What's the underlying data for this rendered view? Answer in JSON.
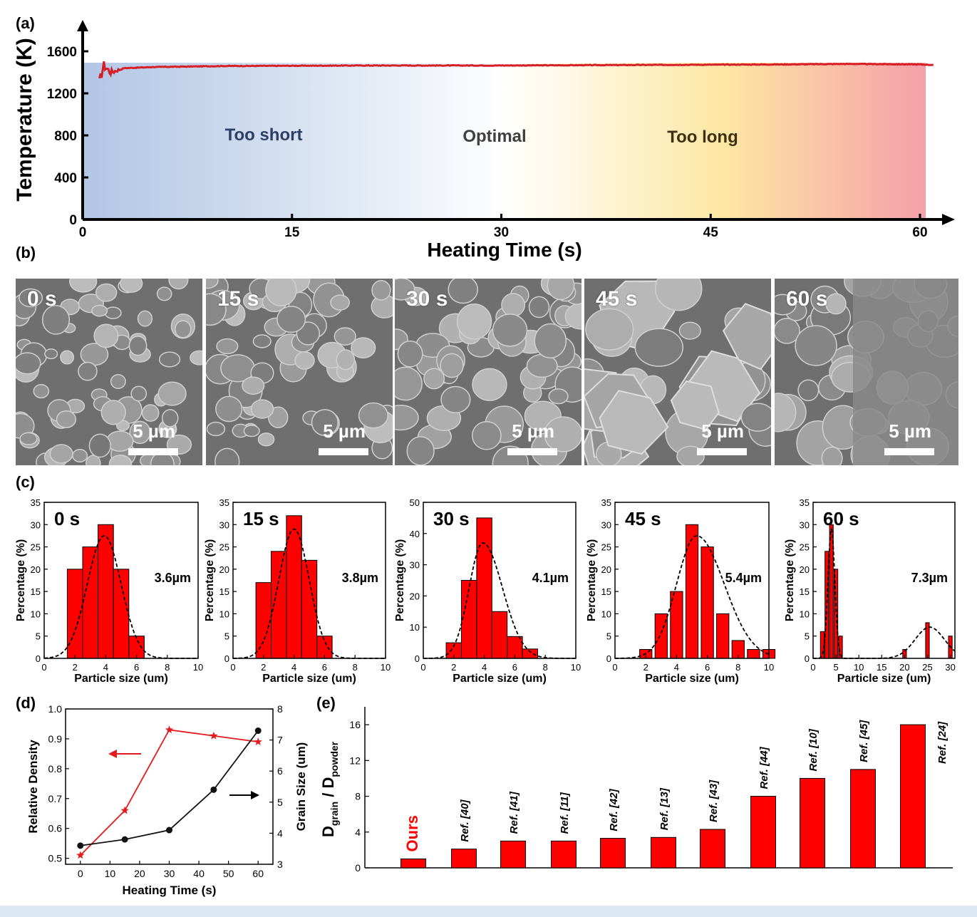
{
  "panels": {
    "a": {
      "tag": "(a)",
      "ylabel": "Temperature (K)",
      "xlabel": "Heating Time (s)",
      "yticks": [
        "0",
        "400",
        "800",
        "1200",
        "1600"
      ],
      "xticks": [
        "0",
        "15",
        "30",
        "45",
        "60"
      ],
      "zones": [
        "Too short",
        "Optimal",
        "Too long"
      ]
    },
    "b": {
      "tag": "(b)",
      "images": [
        {
          "time": "0 s",
          "scale": "5 µm"
        },
        {
          "time": "15 s",
          "scale": "5 µm"
        },
        {
          "time": "30 s",
          "scale": "5 µm"
        },
        {
          "time": "45 s",
          "scale": "5 µm"
        },
        {
          "time": "60 s",
          "scale": "5 µm"
        }
      ]
    },
    "c": {
      "tag": "(c)"
    },
    "d": {
      "tag": "(d)"
    },
    "e": {
      "tag": "(e)"
    }
  },
  "colors": {
    "red": "#e41a1c",
    "bar_red": "#ff0000",
    "trace": "#d61f26",
    "black": "#111111",
    "ours_text": "#ff0000"
  },
  "chart_data": [
    {
      "id": "a",
      "type": "line",
      "x_ticks": [
        0,
        15,
        30,
        45,
        60
      ],
      "y_ticks": [
        0,
        400,
        800,
        1200,
        1600
      ],
      "xlim": [
        0,
        60
      ],
      "ylim": [
        0,
        1600
      ],
      "series": [
        {
          "x": [
            1.2,
            1.5,
            2,
            3,
            5,
            10,
            20,
            30,
            40,
            50,
            55,
            60,
            61
          ],
          "y": [
            1300,
            1470,
            1400,
            1440,
            1450,
            1460,
            1465,
            1465,
            1470,
            1475,
            1480,
            1475,
            1470
          ]
        }
      ],
      "annotations": [
        "Too short",
        "Optimal",
        "Too long"
      ],
      "background_gradient": [
        "#a8bfe0",
        "#ffffff",
        "#fde7a0",
        "#f7a0a8"
      ]
    },
    {
      "id": "c0",
      "type": "bar",
      "label": "0 s",
      "annotation": "3.6µm",
      "xlabel": "Particle size (um)",
      "ylabel": "Percentage (%)",
      "xlim": [
        0,
        10
      ],
      "ylim": [
        0,
        35
      ],
      "x_ticks": [
        0,
        2,
        4,
        6,
        8,
        10
      ],
      "y_ticks": [
        0,
        5,
        10,
        15,
        20,
        25,
        30,
        35
      ],
      "bar_width": 1,
      "x": [
        2,
        3,
        4,
        5,
        6
      ],
      "values": [
        20,
        25,
        30,
        20,
        5
      ],
      "fit": {
        "mean": 3.9,
        "sigma": 1.1,
        "peak": 27.5
      }
    },
    {
      "id": "c15",
      "type": "bar",
      "label": "15 s",
      "annotation": "3.8µm",
      "xlabel": "Particle size (um)",
      "ylabel": "Percentage (%)",
      "xlim": [
        0,
        10
      ],
      "ylim": [
        0,
        35
      ],
      "x_ticks": [
        0,
        2,
        4,
        6,
        8,
        10
      ],
      "y_ticks": [
        0,
        5,
        10,
        15,
        20,
        25,
        30,
        35
      ],
      "bar_width": 1,
      "x": [
        2,
        3,
        4,
        5,
        6
      ],
      "values": [
        17,
        24,
        32,
        22,
        5
      ],
      "fit": {
        "mean": 4.0,
        "sigma": 1.0,
        "peak": 29
      }
    },
    {
      "id": "c30",
      "type": "bar",
      "label": "30 s",
      "annotation": "4.1µm",
      "xlabel": "Particle size (um)",
      "ylabel": "Percentage (%)",
      "xlim": [
        0,
        10
      ],
      "ylim": [
        0,
        50
      ],
      "x_ticks": [
        0,
        2,
        4,
        6,
        8,
        10
      ],
      "y_ticks": [
        0,
        10,
        20,
        30,
        40,
        50
      ],
      "bar_width": 1,
      "x": [
        2,
        3,
        4,
        5,
        6,
        7
      ],
      "values": [
        5,
        25,
        45,
        15,
        7,
        3
      ],
      "fit": {
        "mean": 3.9,
        "sigma": 0.9,
        "peak": 37,
        "tail_sigma": 1.3
      }
    },
    {
      "id": "c45",
      "type": "bar",
      "label": "45 s",
      "annotation": "5.4µm",
      "xlabel": "Particle size (um)",
      "ylabel": "Percentage (%)",
      "xlim": [
        0,
        10
      ],
      "ylim": [
        0,
        35
      ],
      "x_ticks": [
        0,
        2,
        4,
        6,
        8,
        10
      ],
      "y_ticks": [
        0,
        5,
        10,
        15,
        20,
        25,
        30,
        35
      ],
      "bar_width": 0.8,
      "x": [
        2,
        3,
        4,
        5,
        6,
        7,
        8,
        9,
        10
      ],
      "values": [
        2,
        10,
        15,
        30,
        25,
        10,
        4,
        2,
        2
      ],
      "fit": {
        "mean": 5.3,
        "sigma": 1.3,
        "peak": 27.5,
        "tail_sigma": 1.8
      }
    },
    {
      "id": "c60",
      "type": "bar",
      "label": "60 s",
      "annotation": "7.3µm",
      "xlabel": "Particle size (um)",
      "ylabel": "Percentage (%)",
      "xlim": [
        0,
        31
      ],
      "ylim": [
        0,
        35
      ],
      "x_ticks": [
        0,
        5,
        10,
        15,
        20,
        25,
        30
      ],
      "y_ticks": [
        0,
        5,
        10,
        15,
        20,
        25,
        30,
        35
      ],
      "bar_width": 0.8,
      "x": [
        2,
        3,
        4,
        5,
        6,
        20,
        25,
        30
      ],
      "values": [
        6,
        24,
        30,
        20,
        5,
        2,
        8,
        5
      ],
      "fit": {
        "mean": 4.0,
        "sigma": 0.75,
        "peak": 29,
        "mean2": 25.5,
        "sigma2": 3.2,
        "peak2": 7
      }
    },
    {
      "id": "d",
      "type": "line",
      "xlabel": "Heating Time (s)",
      "ylabel": "Relative Density",
      "y2label": "Grain Size (um)",
      "xlim": [
        -5,
        65
      ],
      "ylim": [
        0.48,
        1.0
      ],
      "y2lim": [
        3,
        8
      ],
      "x_ticks": [
        0,
        10,
        20,
        30,
        40,
        50,
        60
      ],
      "y_ticks": [
        0.5,
        0.6,
        0.7,
        0.8,
        0.9,
        1.0
      ],
      "y2_ticks": [
        3,
        4,
        5,
        6,
        7,
        8
      ],
      "series": [
        {
          "axis": "left",
          "color": "red",
          "marker": "star",
          "x": [
            0,
            15,
            30,
            45,
            60
          ],
          "y": [
            0.51,
            0.66,
            0.93,
            0.91,
            0.89
          ]
        },
        {
          "axis": "right",
          "color": "black",
          "marker": "circle",
          "x": [
            0,
            15,
            30,
            45,
            60
          ],
          "y": [
            3.6,
            3.8,
            4.1,
            5.4,
            7.3
          ]
        }
      ]
    },
    {
      "id": "e",
      "type": "bar",
      "ylabel": "D_grain / D_powder",
      "ylabel_main": "D",
      "ylabel_sub1": "grain",
      "ylabel_mid": " / D",
      "ylabel_sub2": "powder",
      "ylim": [
        0,
        18
      ],
      "y_ticks": [
        0,
        4,
        8,
        12,
        16
      ],
      "categories": [
        "Ours",
        "Ref. [40]",
        "Ref. [41]",
        "Ref. [11]",
        "Ref. [42]",
        "Ref. [13]",
        "Ref. [43]",
        "Ref. [44]",
        "Ref. [10]",
        "Ref. [45]",
        "Ref. [24]"
      ],
      "values": [
        1,
        2.1,
        3,
        3,
        3.3,
        3.4,
        4.3,
        8,
        10,
        11,
        16
      ]
    }
  ]
}
